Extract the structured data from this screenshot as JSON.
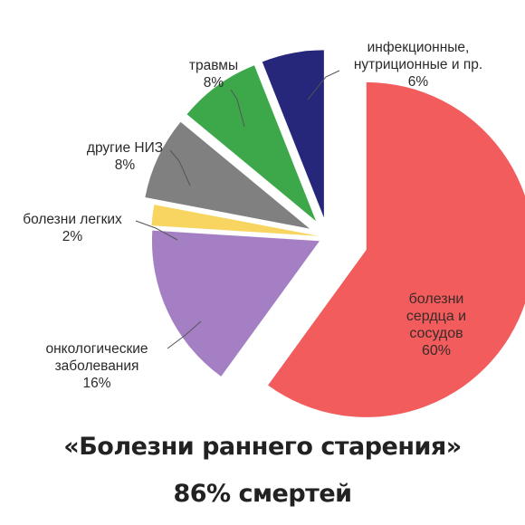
{
  "chart_data": {
    "type": "pie",
    "exploded": true,
    "slices": [
      {
        "label_lines": [
          "болезни",
          "сердца и",
          "сосудов"
        ],
        "percent_label": "60%",
        "value": 60,
        "color": "#f25c5c"
      },
      {
        "label_lines": [
          "онкологические",
          "заболевания"
        ],
        "percent_label": "16%",
        "value": 16,
        "color": "#a57fc4"
      },
      {
        "label_lines": [
          "болезни легких"
        ],
        "percent_label": "2%",
        "value": 2,
        "color": "#f7d560"
      },
      {
        "label_lines": [
          "другие НИЗ"
        ],
        "percent_label": "8%",
        "value": 8,
        "color": "#808080"
      },
      {
        "label_lines": [
          "травмы"
        ],
        "percent_label": "8%",
        "value": 8,
        "color": "#3da84a"
      },
      {
        "label_lines": [
          "инфекционные,",
          "нутриционные  и пр."
        ],
        "percent_label": "6%",
        "value": 6,
        "color": "#26277a"
      }
    ]
  },
  "caption": {
    "line1": "«Болезни раннего старения»",
    "line2": "86% смертей"
  }
}
